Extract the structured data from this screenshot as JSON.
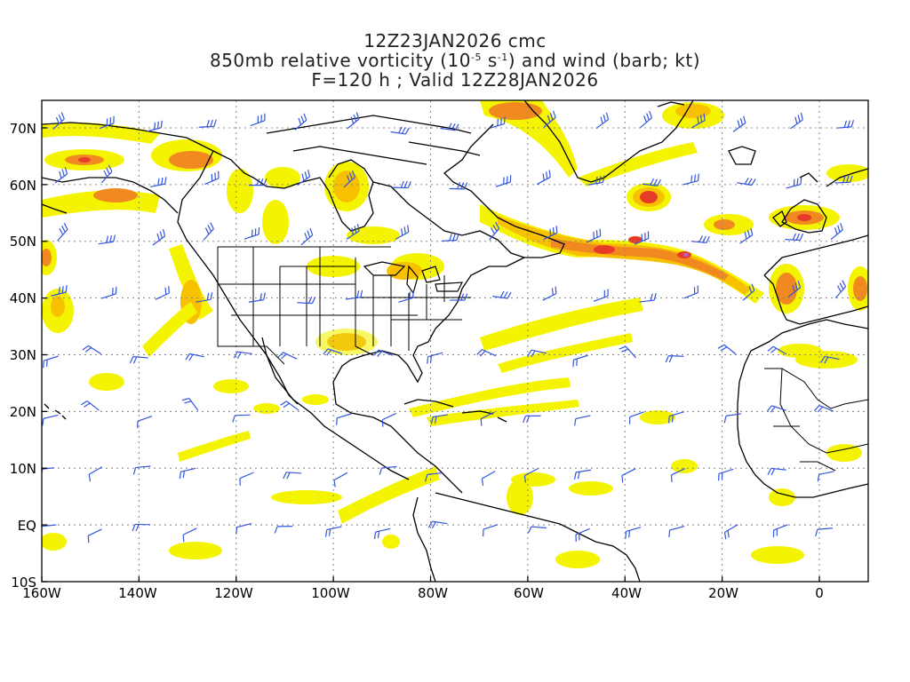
{
  "title": {
    "line1": "12Z23JAN2026 cmc",
    "line2_pre": "850mb relative vorticity (10",
    "line2_exp1": "-5",
    "line2_mid": " s",
    "line2_exp2": "-1",
    "line2_post": ") and wind (barb; kt)",
    "line3": "F=120 h ; Valid 12Z28JAN2026"
  },
  "axes": {
    "lat_labels": [
      "70N",
      "60N",
      "50N",
      "40N",
      "30N",
      "20N",
      "10N",
      "EQ",
      "10S"
    ],
    "lon_labels": [
      "160W",
      "140W",
      "120W",
      "100W",
      "80W",
      "60W",
      "40W",
      "20W",
      "0"
    ]
  },
  "colors": {
    "vort_low": "#f4f400",
    "vort_mid": "#f7c000",
    "vort_high": "#f08a20",
    "vort_max": "#e83a28",
    "barb": "#3355dd",
    "coast": "#000000",
    "grid": "#888888"
  }
}
